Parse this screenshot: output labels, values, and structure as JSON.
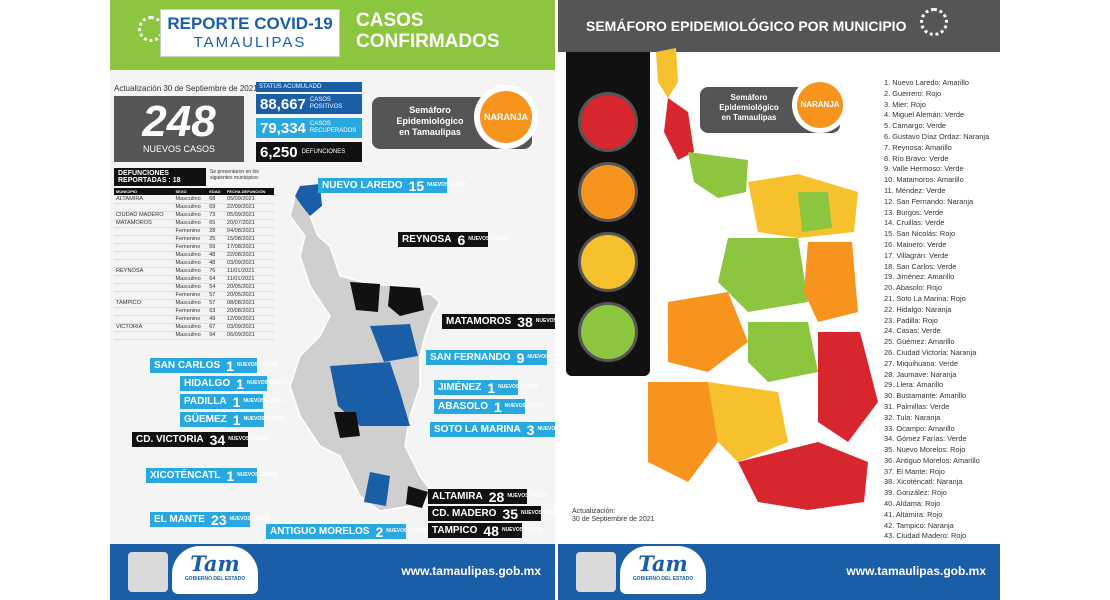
{
  "left": {
    "title_line1": "REPORTE COVID-19",
    "title_line2": "TAMAULIPAS",
    "heading_line1": "CASOS",
    "heading_line2": "CONFIRMADOS",
    "update": "Actualización 30 de Septiembre de 2021",
    "new_cases": "248",
    "new_cases_label": "NUEVOS CASOS",
    "status_label": "STATUS ACUMULADO",
    "positivos": {
      "value": "88,667",
      "caption": "CASOS POSITIVOS"
    },
    "recuperados": {
      "value": "79,334",
      "caption": "CASOS RECUPERADOS"
    },
    "defunciones": {
      "value": "6,250",
      "caption": "DEFUNCIONES"
    },
    "semaforo_line1": "Semáforo",
    "semaforo_line2": "Epidemiológico",
    "semaforo_line3": "en Tamaulipas",
    "semaforo_state": "NARANJA",
    "deaths_title": "DEFUNCIONES REPORTADAS : 18",
    "deaths_note": "Se presentaron en los siguientes municipios:",
    "deaths_headers": [
      "MUNICIPIO",
      "SEXO",
      "EDAD",
      "FECHA DEFUNCIÓN"
    ],
    "deaths_rows": [
      [
        "ALTAMIRA",
        "Masculino",
        "68",
        "05/09/2021"
      ],
      [
        "",
        "Masculino",
        "69",
        "22/09/2021"
      ],
      [
        "CIUDAD MADERO",
        "Masculino",
        "73",
        "05/09/2021"
      ],
      [
        "MATAMOROS",
        "Masculino",
        "65",
        "20/07/2021"
      ],
      [
        "",
        "Femenino",
        "28",
        "04/08/2021"
      ],
      [
        "",
        "Femenino",
        "25",
        "15/08/2021"
      ],
      [
        "",
        "Femenino",
        "59",
        "17/08/2021"
      ],
      [
        "",
        "Masculino",
        "48",
        "22/08/2021"
      ],
      [
        "",
        "Masculino",
        "48",
        "03/09/2021"
      ],
      [
        "REYNOSA",
        "Masculino",
        "76",
        "11/01/2021"
      ],
      [
        "",
        "Masculino",
        "64",
        "11/01/2021"
      ],
      [
        "",
        "Masculino",
        "54",
        "20/05/2021"
      ],
      [
        "",
        "Femenino",
        "57",
        "20/05/2021"
      ],
      [
        "TAMPICO",
        "Masculino",
        "57",
        "08/08/2021"
      ],
      [
        "",
        "Femenino",
        "63",
        "20/08/2021"
      ],
      [
        "",
        "Femenino",
        "49",
        "12/09/2021"
      ],
      [
        "VICTORIA",
        "Masculino",
        "67",
        "03/09/2021"
      ],
      [
        "",
        "Masculino",
        "94",
        "06/09/2021"
      ]
    ],
    "cases_caption": "NUEVOS CASOS",
    "case_labels": [
      {
        "name": "NUEVO LAREDO",
        "n": "15"
      },
      {
        "name": "REYNOSA",
        "n": "6"
      },
      {
        "name": "MATAMOROS",
        "n": "38"
      },
      {
        "name": "SAN FERNANDO",
        "n": "9"
      },
      {
        "name": "SAN CARLOS",
        "n": "1"
      },
      {
        "name": "HIDALGO",
        "n": "1"
      },
      {
        "name": "PADILLA",
        "n": "1"
      },
      {
        "name": "GÜEMEZ",
        "n": "1"
      },
      {
        "name": "CD. VICTORIA",
        "n": "34"
      },
      {
        "name": "JIMÉNEZ",
        "n": "1"
      },
      {
        "name": "ABASOLO",
        "n": "1"
      },
      {
        "name": "SOTO LA MARINA",
        "n": "3"
      },
      {
        "name": "XICOTÉNCATL",
        "n": "1"
      },
      {
        "name": "ALTAMIRA",
        "n": "28"
      },
      {
        "name": "CD. MADERO",
        "n": "35"
      },
      {
        "name": "TAMPICO",
        "n": "48"
      },
      {
        "name": "EL MANTE",
        "n": "23"
      },
      {
        "name": "ANTIGUO MORELOS",
        "n": "2"
      }
    ]
  },
  "footer": {
    "logo": "Tam",
    "gob": "GOBIERNO DEL ESTADO",
    "url": "www.tamaulipas.gob.mx"
  },
  "right": {
    "title": "SEMÁFORO EPIDEMIOLÓGICO POR MUNICIPIO",
    "semaforo_line1": "Semáforo",
    "semaforo_line2": "Epidemiológico",
    "semaforo_line3": "en Tamaulipas",
    "semaforo_state": "NARANJA",
    "update_line1": "Actualización:",
    "update_line2": "30 de Septiembre de 2021",
    "municipios": [
      "1. Nuevo Laredo: Amarillo",
      "2. Guerrero: Rojo",
      "3. Mier: Rojo",
      "4. Miguel Alemán: Verde",
      "5. Camargo: Verde",
      "6. Gustavo Díaz Ordaz: Naranja",
      "7. Reynosa: Amarillo",
      "8. Río Bravo: Verde",
      "9. Valle Hermoso: Verde",
      "10. Matamoros: Amarillo",
      "11. Méndez: Verde",
      "12. San Fernando: Naranja",
      "13. Burgos: Verde",
      "14. Cruillas: Verde",
      "15. San Nicolás: Rojo",
      "16. Mainero: Verde",
      "17. Villagrán: Verde",
      "18. San Carlos: Verde",
      "19. Jiménez: Amarillo",
      "20. Abasolo: Rojo",
      "21. Soto La Marina: Rojo",
      "22. Hidalgo: Naranja",
      "23. Padilla: Rojo",
      "24. Casas: Verde",
      "25. Güémez: Amarillo",
      "26. Ciudad Victoria: Naranja",
      "27. Miquihuana: Verde",
      "28. Jaumave: Naranja",
      "29. Llera: Amarillo",
      "30. Bustamante: Amarillo",
      "31. Palmillas: Verde",
      "32. Tula: Naranja",
      "33. Ocampo: Amarillo",
      "34. Gómez Farías: Verde",
      "35. Nuevo Morelos: Rojo",
      "36. Antiguo Morelos: Amarillo",
      "37. El Mante: Rojo",
      "38. Xicoténcatl: Naranja",
      "39. González: Rojo",
      "40. Aldama: Rojo",
      "41. Altamira: Rojo",
      "42. Tampico: Naranja",
      "43. Ciudad Madero: Rojo"
    ]
  },
  "colors": {
    "green_header": "#8cc63f",
    "blue": "#1a5ea8",
    "cyan": "#29a8e0",
    "orange": "#f7941d",
    "red": "#d7262e",
    "yellow": "#f6c12d",
    "grey": "#555555"
  },
  "icons": [
    "virus-icon",
    "state-seal-icon",
    "traffic-light-icon"
  ]
}
